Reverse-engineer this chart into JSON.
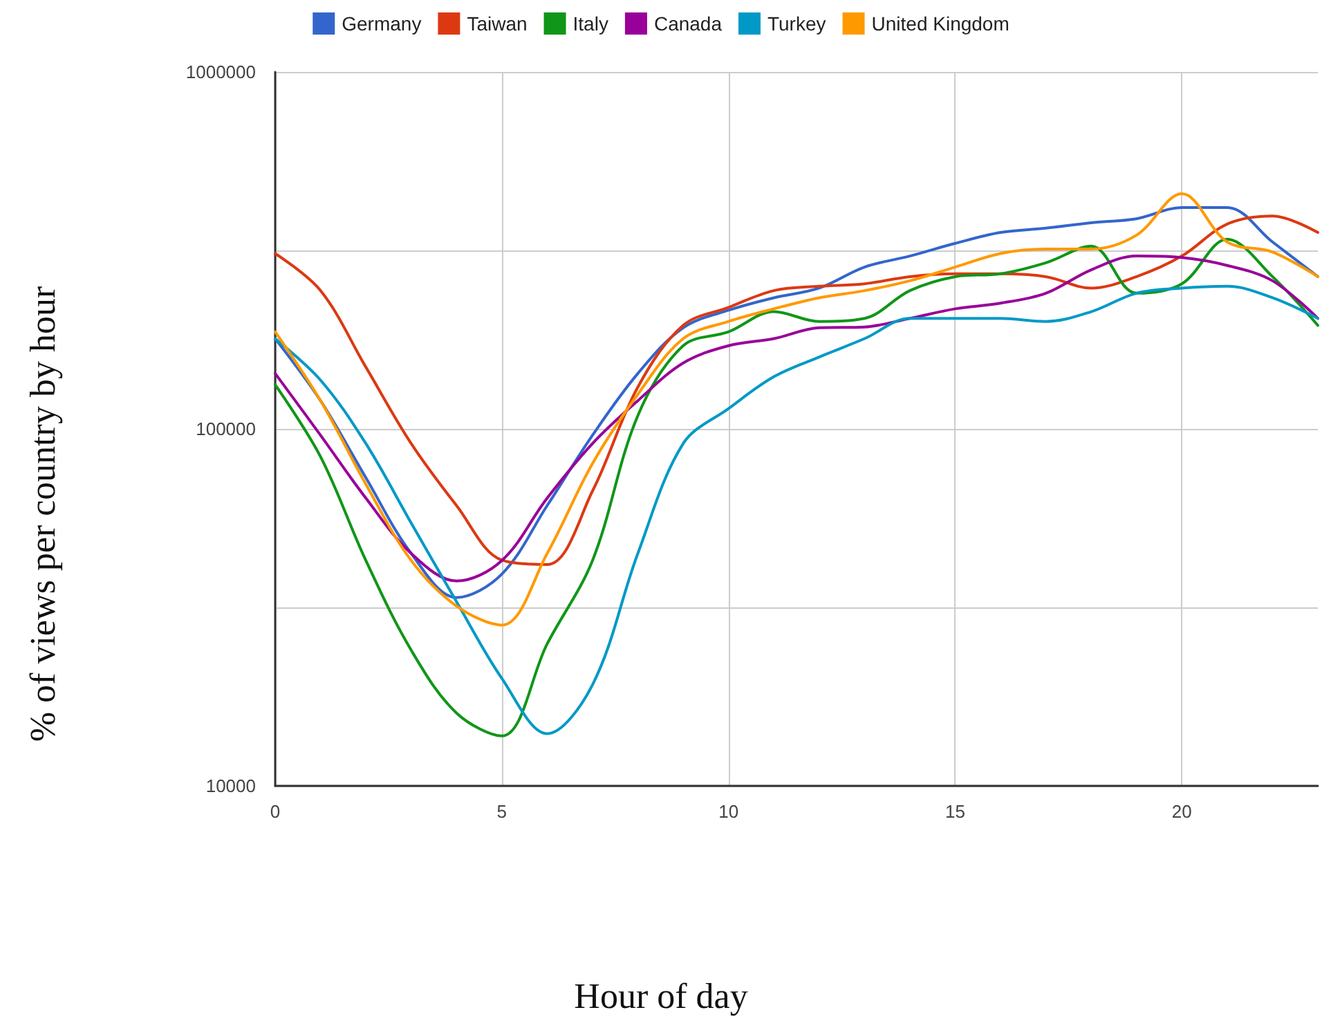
{
  "chart_data": {
    "type": "line",
    "xlabel": "Hour of day",
    "ylabel": "% of views per country by hour",
    "x": [
      0,
      1,
      2,
      3,
      4,
      5,
      6,
      7,
      8,
      9,
      10,
      11,
      12,
      13,
      14,
      15,
      16,
      17,
      18,
      19,
      20,
      21,
      22,
      23
    ],
    "xlim": [
      0,
      23
    ],
    "xticks": [
      0,
      5,
      10,
      15,
      20
    ],
    "ylim": [
      10000,
      1000000
    ],
    "yticks": [
      10000,
      {
        "value": 31623,
        "label": null
      },
      100000,
      {
        "value": 316228,
        "label": null
      },
      1000000
    ],
    "log": "y",
    "grid": true,
    "legend": "top",
    "series": [
      {
        "name": "Germany",
        "color": "#3366cc",
        "values": [
          179000,
          120000,
          73000,
          44800,
          33700,
          39200,
          61000,
          96000,
          143000,
          192000,
          215000,
          233000,
          248000,
          284000,
          305000,
          331000,
          355000,
          365000,
          378000,
          388000,
          417000,
          417000,
          334000,
          267000
        ]
      },
      {
        "name": "Taiwan",
        "color": "#dc3912",
        "values": [
          310000,
          244000,
          149000,
          91000,
          61000,
          42900,
          41700,
          67000,
          131000,
          195000,
          219000,
          244000,
          251000,
          255000,
          267000,
          272000,
          272000,
          267000,
          248000,
          267000,
          305000,
          375000,
          395000,
          355000
        ]
      },
      {
        "name": "Italy",
        "color": "#109618",
        "values": [
          133000,
          83600,
          42800,
          24000,
          16000,
          13800,
          25000,
          42800,
          109000,
          171000,
          187000,
          213000,
          200000,
          204000,
          244000,
          267000,
          272000,
          292000,
          325000,
          240000,
          255000,
          340000,
          267000,
          195000
        ]
      },
      {
        "name": "Canada",
        "color": "#990099",
        "values": [
          143000,
          96000,
          64000,
          44800,
          37500,
          42800,
          64000,
          91000,
          120000,
          153000,
          171000,
          179000,
          192000,
          193000,
          204000,
          217000,
          225000,
          240000,
          279000,
          305000,
          302000,
          287000,
          260000,
          204000
        ]
      },
      {
        "name": "Turkey",
        "color": "#0099c6",
        "values": [
          179000,
          137000,
          91000,
          54500,
          32800,
          20000,
          14000,
          19200,
          44800,
          91000,
          114000,
          140000,
          159000,
          179000,
          204000,
          204000,
          204000,
          200000,
          213000,
          240000,
          248000,
          251000,
          233000,
          204000
        ]
      },
      {
        "name": "United Kingdom",
        "color": "#ff9900",
        "values": [
          187000,
          120000,
          70000,
          42800,
          31900,
          28200,
          44800,
          80000,
          125000,
          179000,
          200000,
          217000,
          233000,
          244000,
          260000,
          284000,
          310000,
          319000,
          319000,
          349000,
          456000,
          334000,
          313000,
          267000
        ]
      }
    ]
  }
}
